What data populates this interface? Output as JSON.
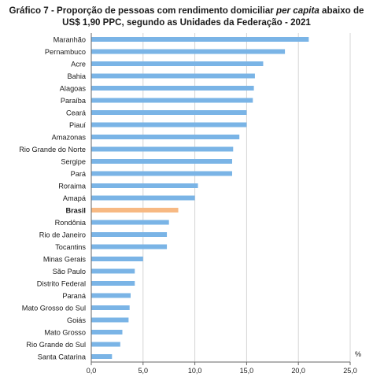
{
  "title": {
    "line1_prefix": "Gráfico 7 - Proporção de pessoas com rendimento domiciliar ",
    "line1_italic": "per capita",
    "line1_suffix": " abaixo de",
    "line2": "US$ 1,90 PPC, segundo as Unidades da Federação - 2021"
  },
  "colors": {
    "bar": "#7ab4e6",
    "highlight": "#f7b983",
    "axis": "#666666",
    "grid": "#d4d4d4"
  },
  "chart_data": {
    "type": "bar",
    "orientation": "horizontal",
    "categories": [
      "Maranhão",
      "Pernambuco",
      "Acre",
      "Bahia",
      "Alagoas",
      "Paraíba",
      "Ceará",
      "Piauí",
      "Amazonas",
      "Rio Grande do Norte",
      "Sergipe",
      "Pará",
      "Roraima",
      "Amapá",
      "Brasil",
      "Rondônia",
      "Rio de Janeiro",
      "Tocantins",
      "Minas Gerais",
      "São Paulo",
      "Distrito Federal",
      "Paraná",
      "Mato Grosso do Sul",
      "Goiás",
      "Mato Grosso",
      "Rio Grande do Sul",
      "Santa Catarina"
    ],
    "values": [
      21.0,
      18.7,
      16.6,
      15.8,
      15.7,
      15.6,
      15.0,
      15.0,
      14.3,
      13.7,
      13.6,
      13.6,
      10.3,
      10.0,
      8.4,
      7.5,
      7.3,
      7.3,
      5.0,
      4.2,
      4.2,
      3.8,
      3.7,
      3.6,
      3.0,
      2.8,
      2.0
    ],
    "highlight_category": "Brasil",
    "xticks": [
      "0,0",
      "5,0",
      "10,0",
      "15,0",
      "20,0",
      "25,0"
    ],
    "xtick_values": [
      0,
      5,
      10,
      15,
      20,
      25
    ],
    "xlim": [
      0,
      25
    ],
    "unit_label": "%",
    "grid": true
  }
}
